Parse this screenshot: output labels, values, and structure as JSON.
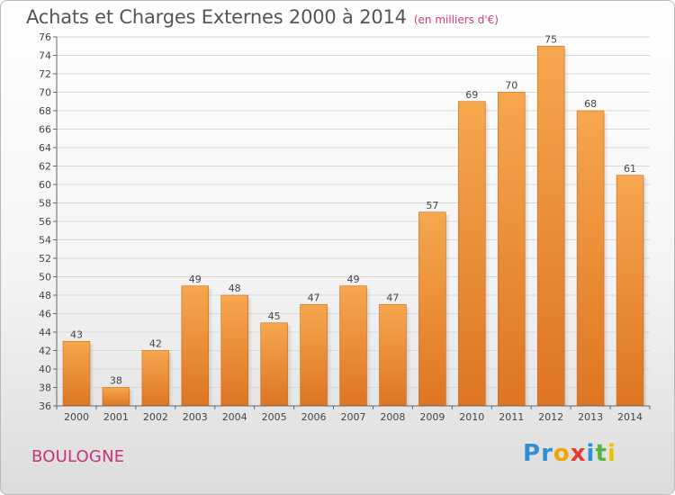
{
  "header": {
    "title": "Achats et Charges Externes 2000 à 2014",
    "subtitle": "(en milliers d'€)"
  },
  "footer": {
    "place": "BOULOGNE",
    "logo_letters": [
      {
        "ch": "P",
        "color": "#2e8fd6"
      },
      {
        "ch": "r",
        "color": "#2e8fd6"
      },
      {
        "ch": "o",
        "color": "#f2a400"
      },
      {
        "ch": "x",
        "color": "#e83a2e"
      },
      {
        "ch": "i",
        "color": "#2e8fd6"
      },
      {
        "ch": "t",
        "color": "#58b33a"
      },
      {
        "ch": "i",
        "color": "#e8c400"
      }
    ]
  },
  "colors": {
    "bar_top": "#f7a74e",
    "bar_bottom": "#de7522",
    "bar_edge": "#c96817",
    "grid": "#d8d8d8"
  },
  "chart_data": {
    "type": "bar",
    "title": "Achats et Charges Externes 2000 à 2014",
    "subtitle": "(en milliers d'€)",
    "categories": [
      "2000",
      "2001",
      "2002",
      "2003",
      "2004",
      "2005",
      "2006",
      "2007",
      "2008",
      "2009",
      "2010",
      "2011",
      "2012",
      "2013",
      "2014"
    ],
    "values": [
      43,
      38,
      42,
      49,
      48,
      45,
      47,
      49,
      47,
      57,
      69,
      70,
      75,
      68,
      61
    ],
    "ylim": [
      36,
      76
    ],
    "ytick_step": 2,
    "grid": true,
    "legend": "none"
  }
}
